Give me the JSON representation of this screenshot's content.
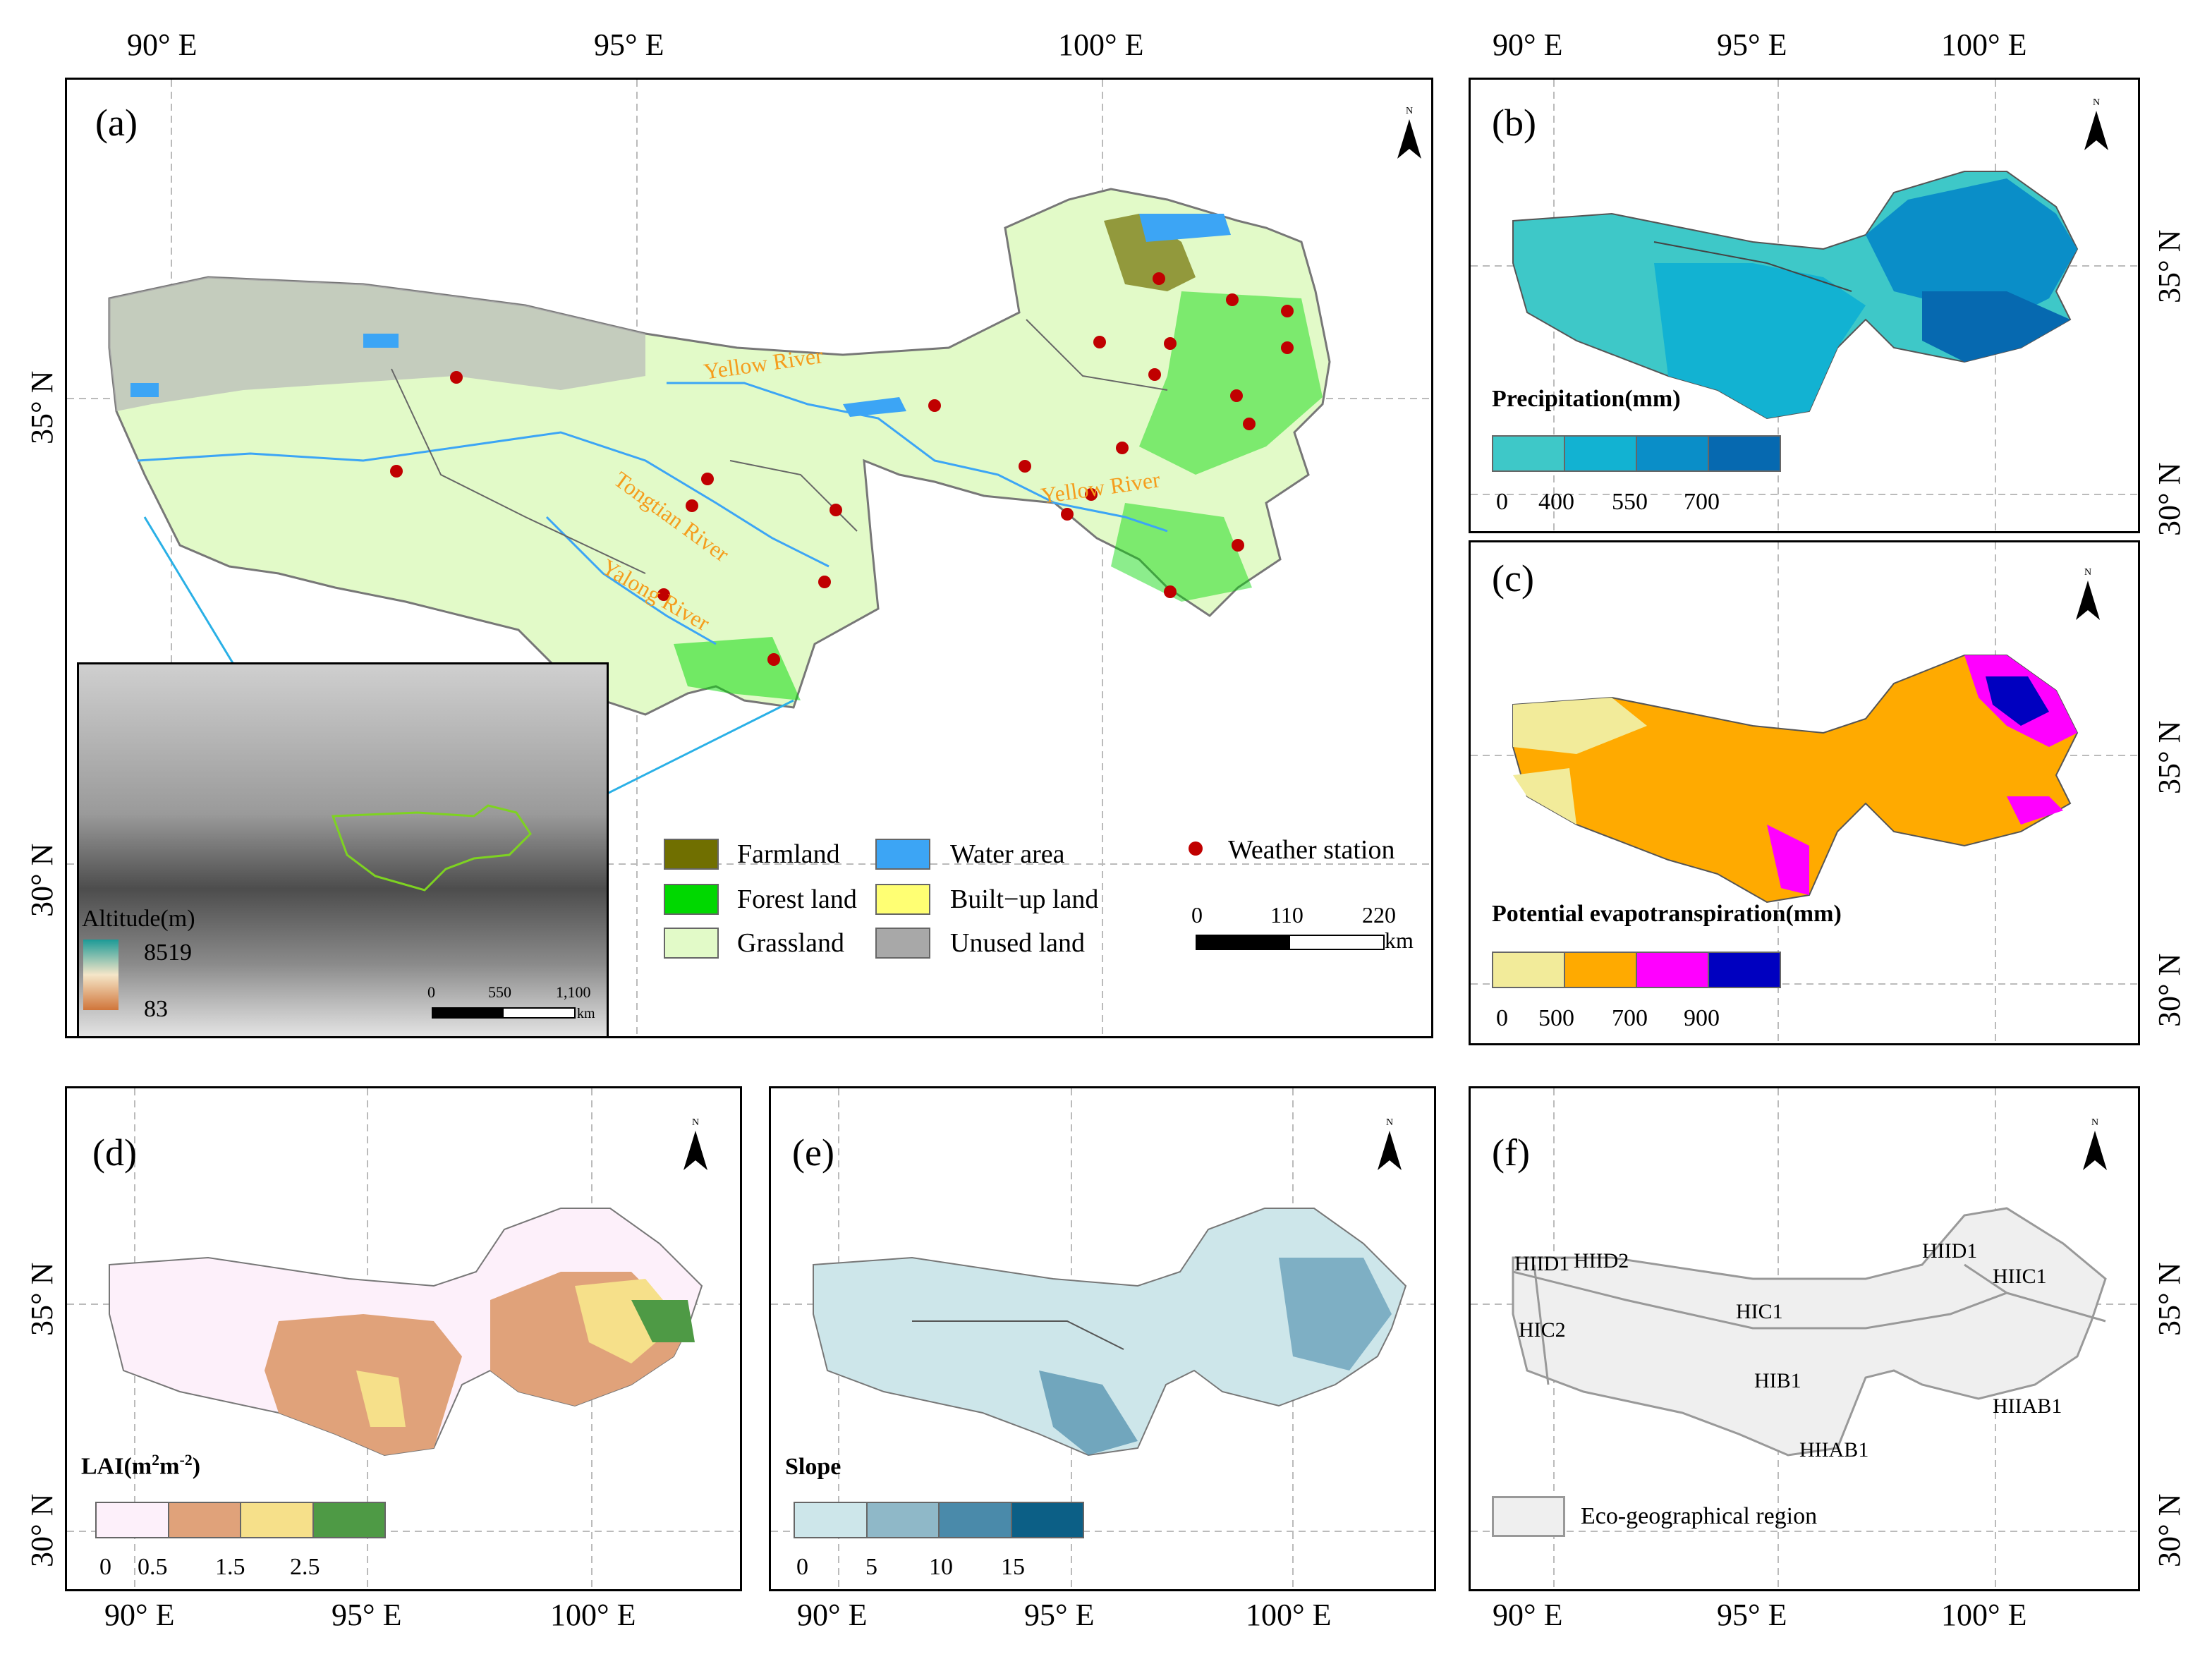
{
  "axes": {
    "lon_top_a": [
      "90° E",
      "95° E",
      "100° E"
    ],
    "lon_top_b": [
      "90° E",
      "95° E",
      "100° E"
    ],
    "lat_left_a": [
      "35° N",
      "30° N"
    ],
    "lat_right_bc": [
      "35° N",
      "30° N",
      "35° N",
      "30° N"
    ],
    "lat_left_d": [
      "35° N",
      "30° N"
    ],
    "lat_right_f": [
      "35° N",
      "30° N"
    ],
    "lon_bottom_a": [],
    "lon_bottom_d": [
      "90° E",
      "95° E",
      "100° E"
    ],
    "lon_bottom_e": [
      "90° E",
      "95° E",
      "100° E"
    ],
    "lon_bottom_f": [
      "90° E",
      "95° E",
      "100° E"
    ]
  },
  "panel_a": {
    "label": "(a)",
    "north": "N",
    "rivers": [
      "Yellow River",
      "Tongtian River",
      "Yalong River",
      "Yellow River"
    ],
    "legend": {
      "items": [
        {
          "label": "Farmland",
          "color": "#706f00"
        },
        {
          "label": "Forest land",
          "color": "#00d800"
        },
        {
          "label": "Grassland",
          "color": "#e2fac8"
        },
        {
          "label": "Water area",
          "color": "#3ca5f5"
        },
        {
          "label": "Built−up land",
          "color": "#ffff73"
        },
        {
          "label": "Unused land",
          "color": "#a8a8a8"
        }
      ],
      "station": "Weather station"
    },
    "scale": {
      "ticks": [
        "0",
        "110",
        "220"
      ],
      "unit": "km"
    },
    "inset": {
      "altitude_title": "Altitude(m)",
      "altitude_max": "8519",
      "altitude_min": "83",
      "scale_ticks": [
        "0",
        "550",
        "1,100"
      ],
      "scale_unit": "km"
    }
  },
  "panel_b": {
    "label": "(b)",
    "north": "N",
    "title": "Precipitation(mm)",
    "colors": [
      "#3ec8c8",
      "#12b2d2",
      "#0a8ec8",
      "#0669b0"
    ],
    "ticks": [
      "0",
      "400",
      "550",
      "700"
    ]
  },
  "panel_c": {
    "label": "(c)",
    "north": "N",
    "title": "Potential evapotranspiration(mm)",
    "colors": [
      "#f2eb9a",
      "#ffaa00",
      "#ff00ff",
      "#0000c0"
    ],
    "ticks": [
      "0",
      "500",
      "700",
      "900"
    ]
  },
  "panel_d": {
    "label": "(d)",
    "north": "N",
    "title_main": "LAI(m",
    "title_sup1": "2",
    "title_mid": "m",
    "title_sup2": "-2",
    "title_end": ")",
    "colors": [
      "#fdf0fa",
      "#e0a27a",
      "#f6e08a",
      "#4e9a45"
    ],
    "ticks": [
      "0",
      "0.5",
      "1.5",
      "2.5"
    ]
  },
  "panel_e": {
    "label": "(e)",
    "north": "N",
    "title": "Slope",
    "colors": [
      "#cde6ea",
      "#8fb8c8",
      "#4a8aaa",
      "#0c5f86"
    ],
    "ticks": [
      "0",
      "5",
      "10",
      "15"
    ]
  },
  "panel_f": {
    "label": "(f)",
    "north": "N",
    "regions": [
      "HIID1",
      "HIID2",
      "HIC2",
      "HIC1",
      "HIB1",
      "HIIAB1",
      "HIID1",
      "HIIC1",
      "HIIAB1"
    ],
    "legend": "Eco-geographical region"
  }
}
